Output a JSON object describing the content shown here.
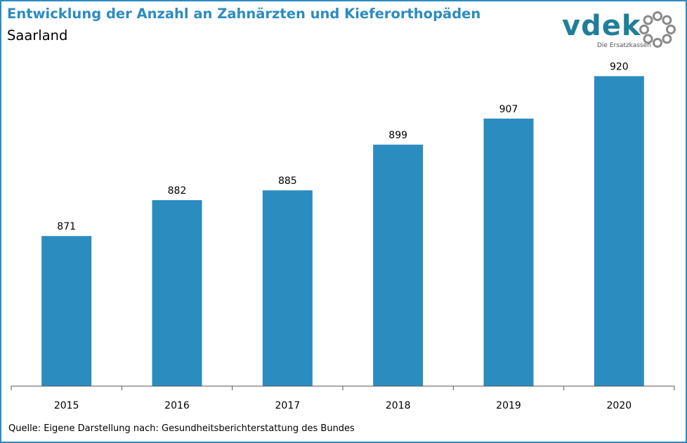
{
  "header": {
    "title": "Entwicklung der Anzahl an Zahnärzten und Kieferorthopäden",
    "subtitle": "Saarland"
  },
  "logo": {
    "wordmark": "vdek",
    "tagline": "Die Ersatzkassen",
    "icon": "dotted-ring-icon",
    "color": "#1f7e99",
    "ring_color": "#8a8a8a"
  },
  "chart_data": {
    "type": "bar",
    "title": "Entwicklung der Anzahl an Zahnärzten und Kieferorthopäden",
    "subtitle": "Saarland",
    "categories": [
      "2015",
      "2016",
      "2017",
      "2018",
      "2019",
      "2020"
    ],
    "values": [
      871,
      882,
      885,
      899,
      907,
      920
    ],
    "xlabel": "",
    "ylabel": "",
    "ylim": [
      825,
      930
    ],
    "bar_color": "#2b8cc0",
    "grid": false,
    "legend": "none"
  },
  "source": "Quelle: Eigene Darstellung nach: Gesundheitsberichterstattung  des Bundes"
}
